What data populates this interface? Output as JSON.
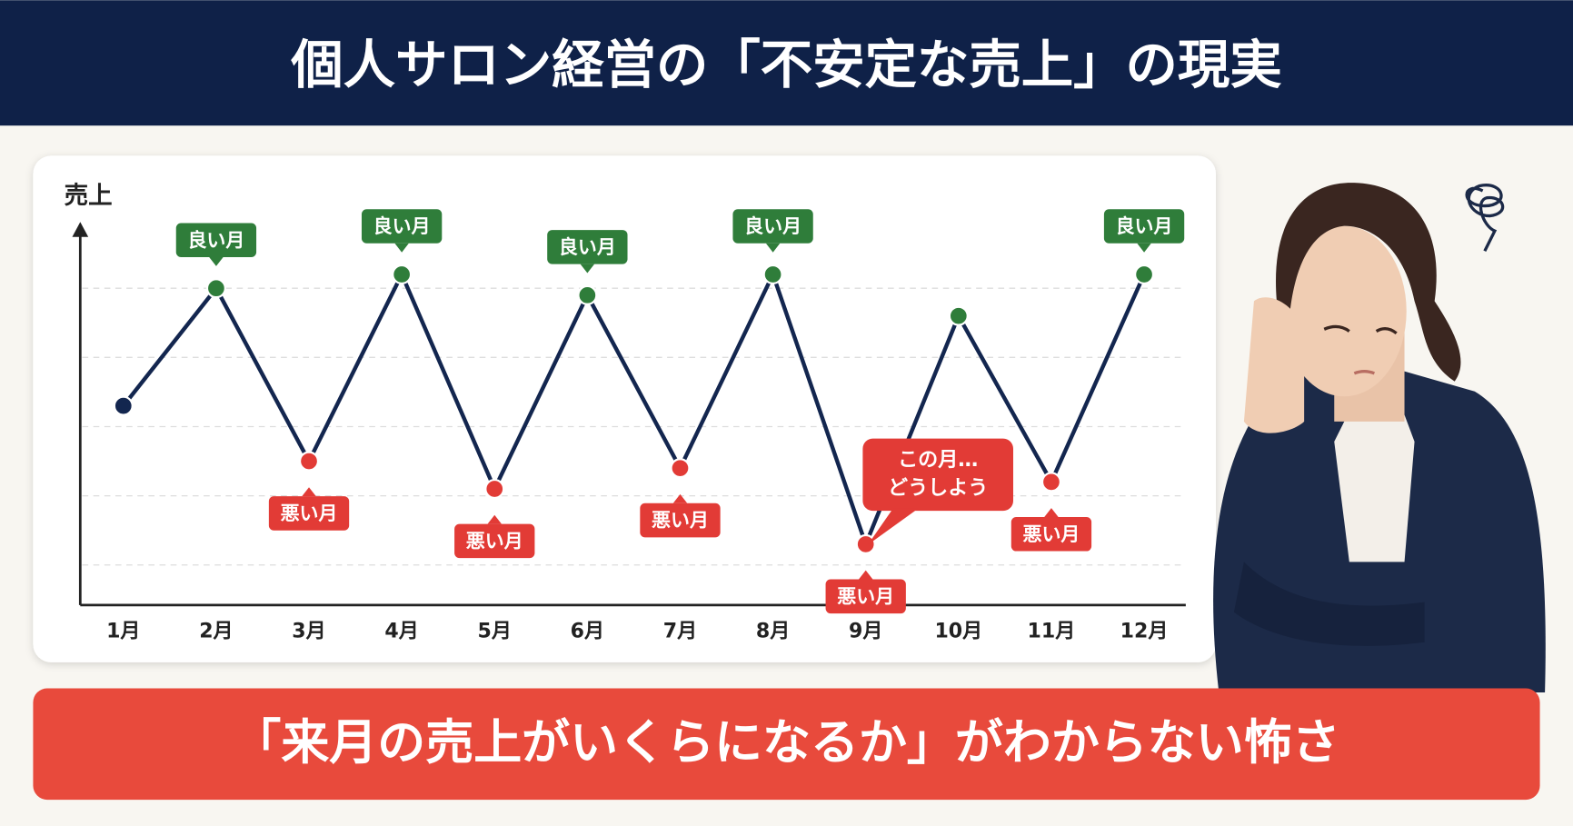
{
  "chart_data": {
    "type": "line",
    "title": "個人サロン経営の「不安定な売上」の現実",
    "y_label": "売上",
    "categories": [
      "1月",
      "2月",
      "3月",
      "4月",
      "5月",
      "6月",
      "7月",
      "8月",
      "9月",
      "10月",
      "11月",
      "12月"
    ],
    "values": [
      3.3,
      5.0,
      2.5,
      5.2,
      2.1,
      4.9,
      2.4,
      5.2,
      1.3,
      4.6,
      2.2,
      5.2
    ],
    "point_labels": [
      null,
      "良い月",
      "悪い月",
      "良い月",
      "悪い月",
      "良い月",
      "悪い月",
      "良い月",
      "悪い月",
      null,
      "悪い月",
      "良い月"
    ],
    "point_colors": [
      "#13264f",
      "#2f7d3a",
      "#e23b36",
      "#2f7d3a",
      "#e23b36",
      "#2f7d3a",
      "#e23b36",
      "#2f7d3a",
      "#e23b36",
      "#2f7d3a",
      "#e23b36",
      "#2f7d3a"
    ],
    "line_color": "#13264f",
    "ylim": [
      0.42,
      5.93
    ],
    "yticks": [
      1,
      2,
      3,
      4,
      5
    ],
    "grid": true,
    "annotation": {
      "index": 8,
      "lines": [
        "この月…",
        "どうしよう"
      ]
    },
    "message": "「来月の売上がいくらになるか」がわからない怖さ"
  }
}
